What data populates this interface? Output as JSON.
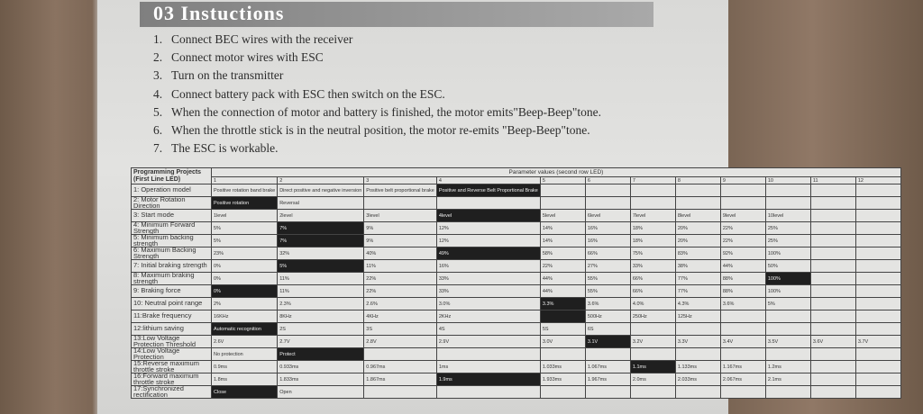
{
  "header": {
    "title": "03 Instuctions"
  },
  "instructions": [
    {
      "number": "1.",
      "text": "Connect BEC wires with the receiver"
    },
    {
      "number": "2.",
      "text": "Connect motor wires with ESC"
    },
    {
      "number": "3.",
      "text": "Turn on the transmitter"
    },
    {
      "number": "4.",
      "text": "Connect battery pack with ESC then switch on the ESC."
    },
    {
      "number": "5.",
      "text": "When the connection of motor and battery is finished, the motor emits\"Beep-Beep\"tone."
    },
    {
      "number": "6.",
      "text": "When the throttle stick is in the neutral position, the motor re-emits \"Beep-Beep\"tone."
    },
    {
      "number": "7.",
      "text": "The ESC is workable."
    }
  ],
  "table": {
    "corner": "Programming Projects (First Line LED)",
    "param_header": "Parameter values (second row LED)",
    "columns": [
      1,
      2,
      3,
      4,
      5,
      6,
      7,
      8,
      9,
      10,
      11,
      12
    ],
    "rows": [
      {
        "label": "1: Operation model",
        "cells": [
          "Positive rotation band brake",
          "Direct positive and negative inversion",
          "Positive belt proportional brake",
          "Positive and Reverse Belt Proportional Brake"
        ],
        "highlight": 3
      },
      {
        "label": "2: Motor Rotation Direction",
        "cells": [
          "Positive rotation",
          "Reversal"
        ],
        "highlight": 0
      },
      {
        "label": "3: Start mode",
        "cells": [
          "1level",
          "2level",
          "3level",
          "4level",
          "5level",
          "6level",
          "7level",
          "8level",
          "9level",
          "10level"
        ],
        "highlight": 3
      },
      {
        "label": "4: Minimum Forward Strength",
        "cells": [
          "5%",
          "7%",
          "9%",
          "12%",
          "14%",
          "16%",
          "18%",
          "20%",
          "22%",
          "25%"
        ],
        "highlight": 1
      },
      {
        "label": "5: Minimum backing strength",
        "cells": [
          "5%",
          "7%",
          "9%",
          "12%",
          "14%",
          "16%",
          "18%",
          "20%",
          "22%",
          "25%"
        ],
        "highlight": 1
      },
      {
        "label": "6: Maximum Backing Strength",
        "cells": [
          "23%",
          "32%",
          "40%",
          "49%",
          "58%",
          "66%",
          "75%",
          "83%",
          "92%",
          "100%"
        ],
        "highlight": 3
      },
      {
        "label": "7: Initial braking strength",
        "cells": [
          "0%",
          "5%",
          "11%",
          "16%",
          "22%",
          "27%",
          "33%",
          "38%",
          "44%",
          "50%"
        ],
        "highlight": 1
      },
      {
        "label": "8: Maximum braking strength",
        "cells": [
          "0%",
          "11%",
          "22%",
          "33%",
          "44%",
          "55%",
          "66%",
          "77%",
          "88%",
          "100%"
        ],
        "highlight": 9
      },
      {
        "label": "9: Braking force",
        "cells": [
          "0%",
          "11%",
          "22%",
          "33%",
          "44%",
          "55%",
          "66%",
          "77%",
          "88%",
          "100%"
        ],
        "highlight": 0
      },
      {
        "label": "10: Neutral point range",
        "cells": [
          "2%",
          "2.3%",
          "2.6%",
          "3.0%",
          "3.3%",
          "3.6%",
          "4.0%",
          "4.3%",
          "3.6%",
          "5%"
        ],
        "highlight": 4
      },
      {
        "label": "11:Brake frequency",
        "cells": [
          "16KHz",
          "8KHz",
          "4KHz",
          "2KHz",
          null,
          "500Hz",
          "250Hz",
          "125Hz"
        ],
        "highlight": 4
      },
      {
        "label": "12:lithium saving",
        "cells": [
          "Automatic recognition",
          "2S",
          "3S",
          "4S",
          "5S",
          "6S"
        ],
        "highlight": 0
      },
      {
        "label": "13:Low Voltage Protection Threshold",
        "cells": [
          "2.6V",
          "2.7V",
          "2.8V",
          "2.9V",
          "3.0V",
          "3.1V",
          "3.2V",
          "3.3V",
          "3.4V",
          "3.5V",
          "3.6V",
          "3.7V"
        ],
        "highlight": 5
      },
      {
        "label": "14:Low Voltage Protection",
        "cells": [
          "No protection",
          "Protect"
        ],
        "highlight": 1
      },
      {
        "label": "15:Reverse maximum throttle stroke",
        "cells": [
          "0.9ms",
          "0.933ms",
          "0.967ms",
          "1ms",
          "1.033ms",
          "1.067ms",
          "1.1ms",
          "1.133ms",
          "1.167ms",
          "1.2ms"
        ],
        "highlight": 6
      },
      {
        "label": "16:Forward maximum throttle stroke",
        "cells": [
          "1.8ms",
          "1.833ms",
          "1.867ms",
          "1.9ms",
          "1.933ms",
          "1.967ms",
          "2.0ms",
          "2.033ms",
          "2.067ms",
          "2.1ms"
        ],
        "highlight": 3
      },
      {
        "label": "17:Synchronized rectification",
        "cells": [
          "Close",
          "Open"
        ],
        "highlight": 0
      }
    ]
  }
}
